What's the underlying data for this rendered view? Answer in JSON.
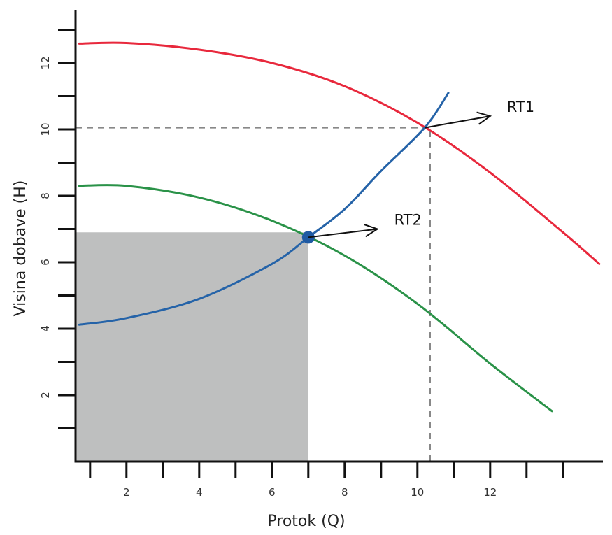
{
  "chart_data": {
    "type": "line",
    "title": "",
    "xlabel": "Protok (Q)",
    "ylabel": "Visina dobave (H)",
    "xlim": [
      0.6,
      15.1
    ],
    "ylim": [
      0.0,
      13.6
    ],
    "x_ticks": [
      2,
      4,
      6,
      8,
      10,
      12
    ],
    "y_ticks": [
      2,
      4,
      6,
      8,
      10,
      12
    ],
    "grid": false,
    "legend": "none",
    "series": [
      {
        "color": "#e8283c",
        "points": [
          [
            0.7,
            12.58
          ],
          [
            2.0,
            12.6
          ],
          [
            4.0,
            12.4
          ],
          [
            6.0,
            12.0
          ],
          [
            8.0,
            11.3
          ],
          [
            10.0,
            10.2
          ],
          [
            12.0,
            8.7
          ],
          [
            14.0,
            6.9
          ],
          [
            15.0,
            5.95
          ]
        ]
      },
      {
        "color": "#2563a8",
        "points": [
          [
            0.7,
            4.12
          ],
          [
            2.0,
            4.32
          ],
          [
            4.0,
            4.9
          ],
          [
            6.0,
            5.95
          ],
          [
            7.0,
            6.75
          ],
          [
            8.0,
            7.6
          ],
          [
            9.0,
            8.75
          ],
          [
            10.2,
            10.05
          ],
          [
            10.85,
            11.1
          ]
        ]
      },
      {
        "color": "#2a9248",
        "points": [
          [
            0.7,
            8.3
          ],
          [
            2.0,
            8.3
          ],
          [
            4.0,
            7.95
          ],
          [
            6.0,
            7.25
          ],
          [
            8.0,
            6.2
          ],
          [
            10.0,
            4.75
          ],
          [
            12.0,
            2.95
          ],
          [
            13.7,
            1.52
          ]
        ]
      }
    ],
    "shaded_region": {
      "x": [
        0.6,
        7.0
      ],
      "y": [
        0.0,
        6.9
      ],
      "color": "#bebfbf"
    },
    "guide_lines": [
      {
        "orientation": "horizontal",
        "value": 10.05,
        "from": 0.6,
        "to": 10.35
      },
      {
        "orientation": "vertical",
        "value": 10.35,
        "from": 0.0,
        "to": 10.05
      }
    ],
    "marker": {
      "x": 7.0,
      "y": 6.75,
      "color": "#1f5aa3"
    },
    "annotations": [
      {
        "label": "RT1",
        "point": [
          10.2,
          10.05
        ],
        "arrow_to": [
          12.0,
          10.4
        ]
      },
      {
        "label": "RT2",
        "point": [
          7.0,
          6.75
        ],
        "arrow_to": [
          8.9,
          7.0
        ]
      }
    ]
  }
}
